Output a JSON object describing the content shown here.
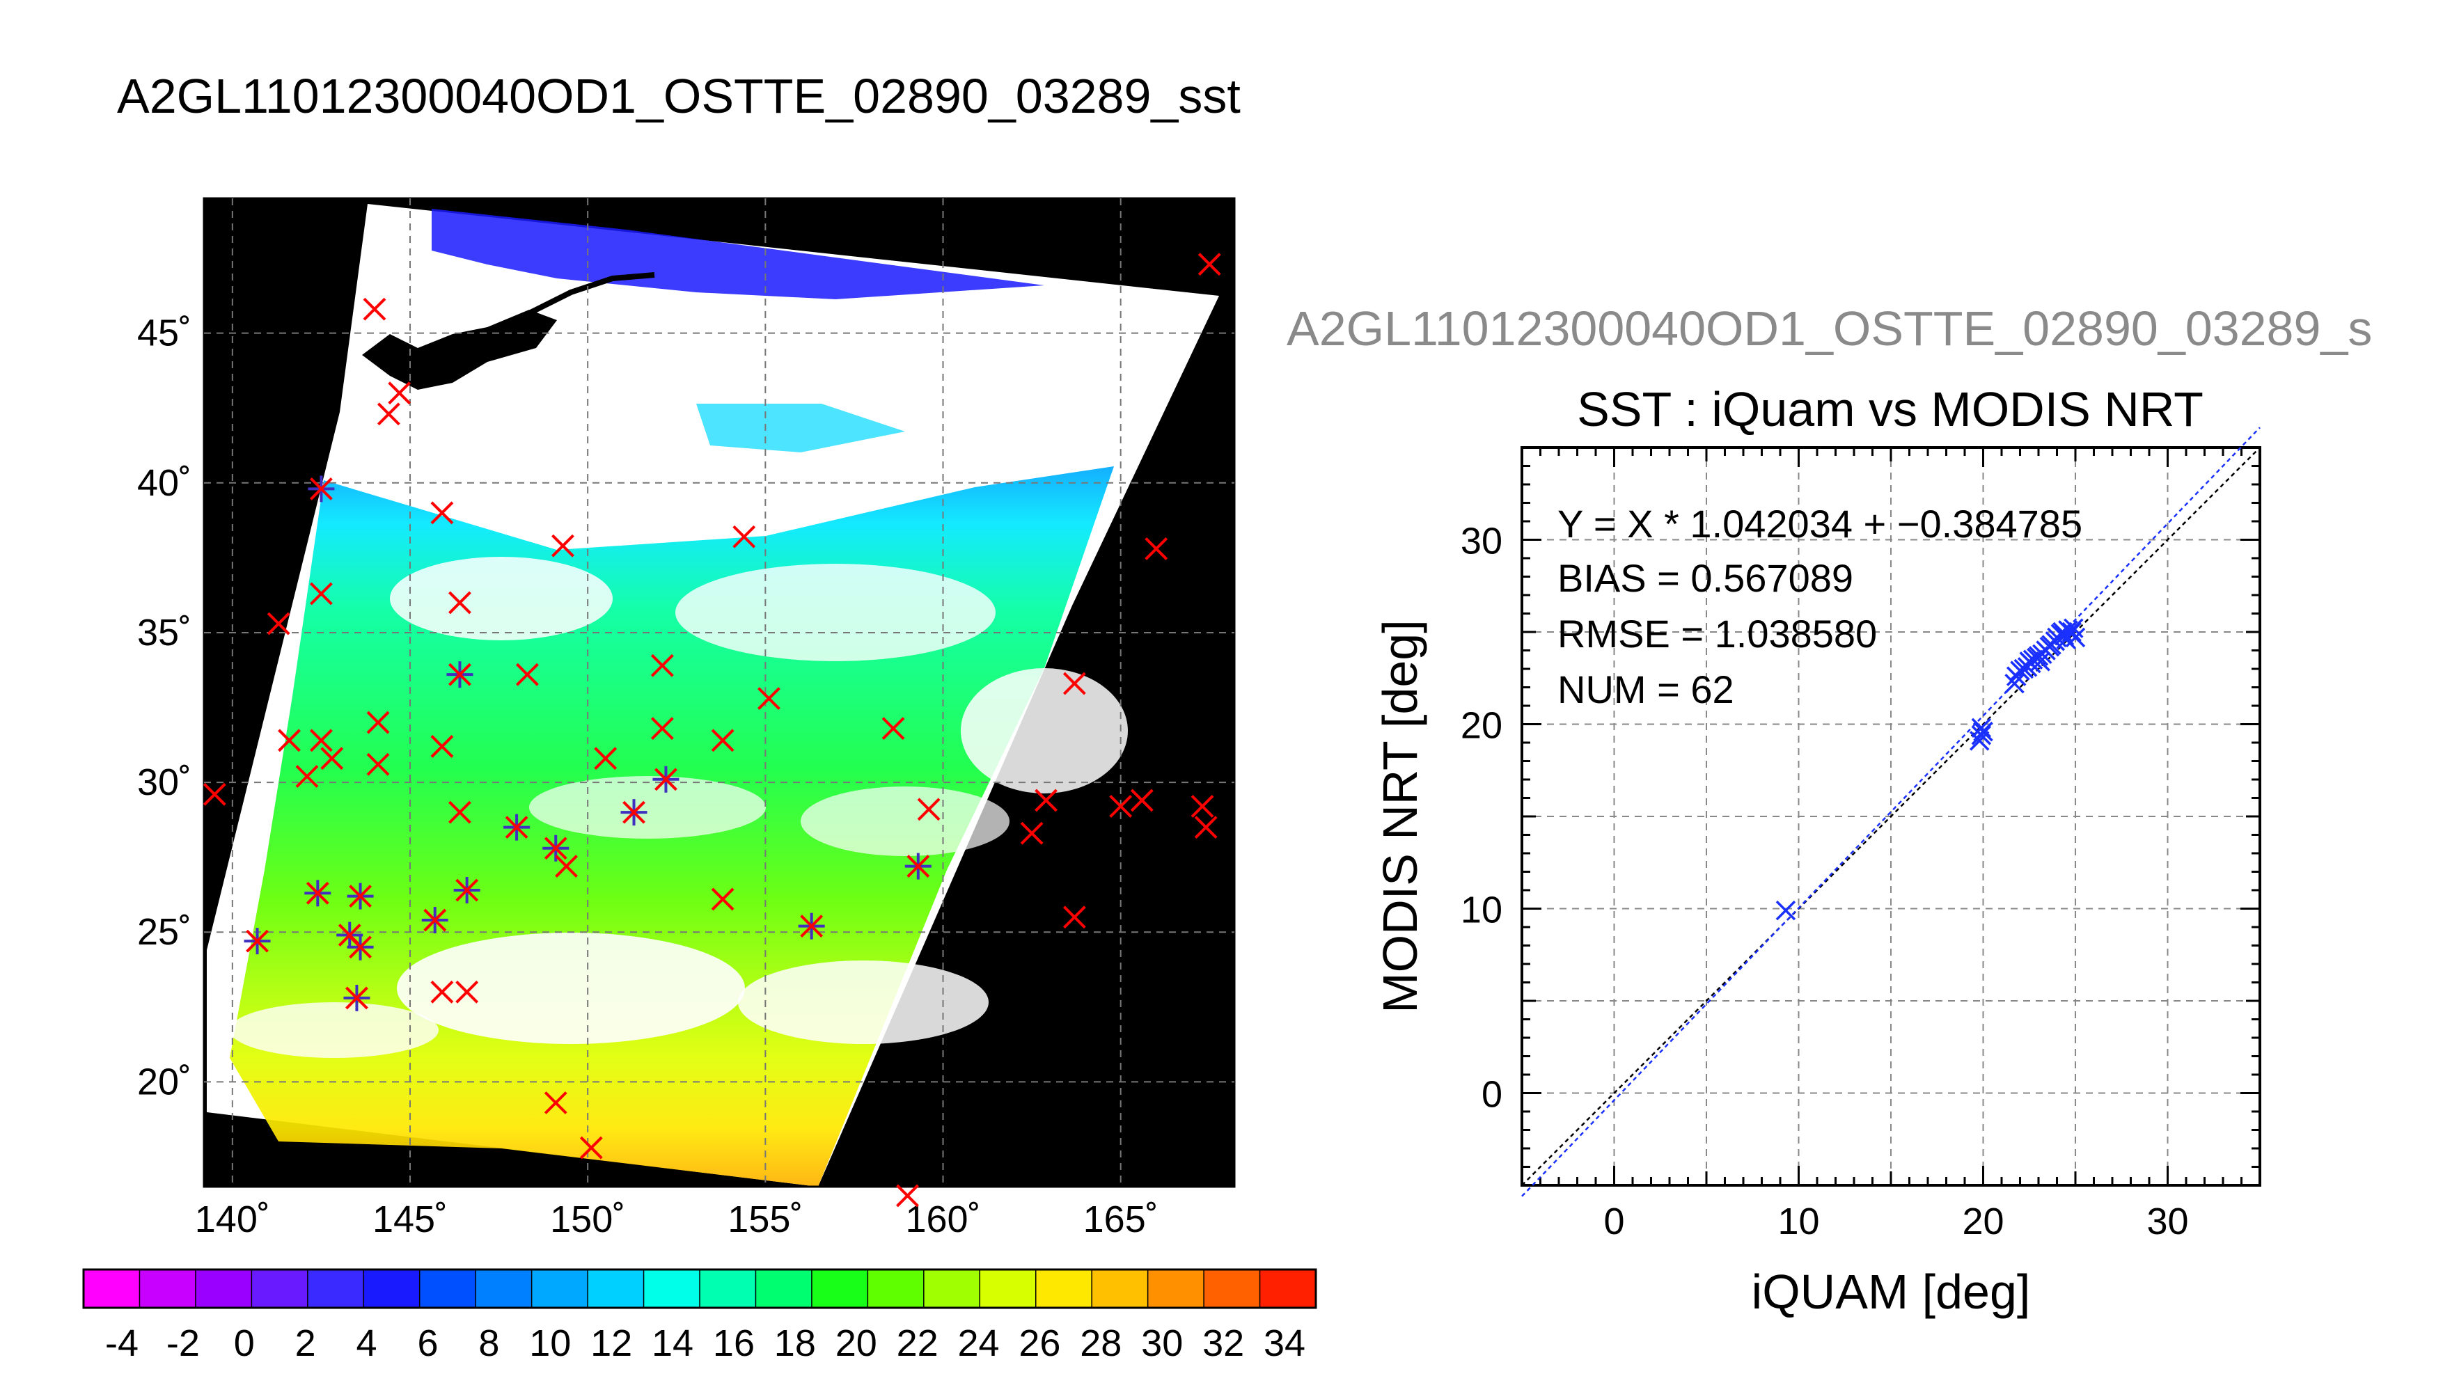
{
  "title": "A2GL11012300040OD1_OSTTE_02890_03289_sst",
  "right_title": "A2GL11012300040OD1_OSTTE_02890_03289_s",
  "map": {
    "lon_labels": [
      "140˚",
      "145˚",
      "150˚",
      "155˚",
      "160˚",
      "165˚"
    ],
    "lat_labels": [
      "45˚",
      "40˚",
      "35˚",
      "30˚",
      "25˚",
      "20˚"
    ],
    "lon_range": [
      139.2,
      168.2
    ],
    "lat_range": [
      16.5,
      49.5
    ],
    "grid_lons": [
      140,
      145,
      150,
      155,
      160,
      165
    ],
    "grid_lats": [
      20,
      25,
      30,
      35,
      40,
      45
    ],
    "markers": [
      {
        "lon": 144.0,
        "lat": 45.8,
        "type": "x"
      },
      {
        "lon": 167.5,
        "lat": 47.3,
        "type": "x"
      },
      {
        "lon": 144.4,
        "lat": 42.3,
        "type": "x"
      },
      {
        "lon": 144.7,
        "lat": 43.0,
        "type": "x"
      },
      {
        "lon": 142.5,
        "lat": 39.8,
        "type": "star"
      },
      {
        "lon": 145.9,
        "lat": 39.0,
        "type": "x"
      },
      {
        "lon": 149.3,
        "lat": 37.9,
        "type": "x"
      },
      {
        "lon": 154.4,
        "lat": 38.2,
        "type": "x"
      },
      {
        "lon": 166.0,
        "lat": 37.8,
        "type": "x"
      },
      {
        "lon": 142.5,
        "lat": 36.3,
        "type": "x"
      },
      {
        "lon": 146.4,
        "lat": 36.0,
        "type": "x"
      },
      {
        "lon": 141.3,
        "lat": 35.3,
        "type": "x"
      },
      {
        "lon": 146.4,
        "lat": 33.6,
        "type": "star"
      },
      {
        "lon": 148.3,
        "lat": 33.6,
        "type": "x"
      },
      {
        "lon": 152.1,
        "lat": 33.9,
        "type": "x"
      },
      {
        "lon": 163.7,
        "lat": 33.3,
        "type": "x"
      },
      {
        "lon": 155.1,
        "lat": 32.8,
        "type": "x"
      },
      {
        "lon": 144.1,
        "lat": 32.0,
        "type": "x"
      },
      {
        "lon": 152.1,
        "lat": 31.8,
        "type": "x"
      },
      {
        "lon": 158.6,
        "lat": 31.8,
        "type": "x"
      },
      {
        "lon": 141.6,
        "lat": 31.4,
        "type": "x"
      },
      {
        "lon": 142.5,
        "lat": 31.4,
        "type": "x"
      },
      {
        "lon": 145.9,
        "lat": 31.2,
        "type": "x"
      },
      {
        "lon": 153.8,
        "lat": 31.4,
        "type": "x"
      },
      {
        "lon": 142.8,
        "lat": 30.8,
        "type": "x"
      },
      {
        "lon": 150.5,
        "lat": 30.8,
        "type": "x"
      },
      {
        "lon": 142.1,
        "lat": 30.2,
        "type": "x"
      },
      {
        "lon": 144.1,
        "lat": 30.6,
        "type": "x"
      },
      {
        "lon": 152.2,
        "lat": 30.1,
        "type": "star"
      },
      {
        "lon": 139.5,
        "lat": 29.6,
        "type": "x"
      },
      {
        "lon": 146.4,
        "lat": 29.0,
        "type": "x"
      },
      {
        "lon": 151.3,
        "lat": 29.0,
        "type": "star"
      },
      {
        "lon": 159.6,
        "lat": 29.1,
        "type": "x"
      },
      {
        "lon": 162.9,
        "lat": 29.4,
        "type": "x"
      },
      {
        "lon": 165.0,
        "lat": 29.2,
        "type": "x"
      },
      {
        "lon": 165.6,
        "lat": 29.4,
        "type": "x"
      },
      {
        "lon": 167.3,
        "lat": 29.2,
        "type": "x"
      },
      {
        "lon": 167.4,
        "lat": 28.5,
        "type": "x"
      },
      {
        "lon": 148.0,
        "lat": 28.5,
        "type": "star"
      },
      {
        "lon": 162.5,
        "lat": 28.3,
        "type": "x"
      },
      {
        "lon": 149.1,
        "lat": 27.8,
        "type": "star"
      },
      {
        "lon": 149.4,
        "lat": 27.2,
        "type": "x"
      },
      {
        "lon": 159.3,
        "lat": 27.2,
        "type": "star"
      },
      {
        "lon": 142.4,
        "lat": 26.3,
        "type": "star"
      },
      {
        "lon": 143.6,
        "lat": 26.2,
        "type": "star"
      },
      {
        "lon": 146.6,
        "lat": 26.4,
        "type": "star"
      },
      {
        "lon": 153.8,
        "lat": 26.1,
        "type": "x"
      },
      {
        "lon": 145.7,
        "lat": 25.4,
        "type": "star"
      },
      {
        "lon": 156.3,
        "lat": 25.2,
        "type": "star"
      },
      {
        "lon": 163.7,
        "lat": 25.5,
        "type": "x"
      },
      {
        "lon": 143.3,
        "lat": 24.9,
        "type": "star"
      },
      {
        "lon": 140.7,
        "lat": 24.7,
        "type": "star"
      },
      {
        "lon": 143.6,
        "lat": 24.5,
        "type": "star"
      },
      {
        "lon": 143.5,
        "lat": 22.8,
        "type": "star"
      },
      {
        "lon": 145.9,
        "lat": 23.0,
        "type": "x"
      },
      {
        "lon": 146.6,
        "lat": 23.0,
        "type": "x"
      },
      {
        "lon": 149.1,
        "lat": 19.3,
        "type": "x"
      },
      {
        "lon": 150.1,
        "lat": 17.8,
        "type": "x"
      },
      {
        "lon": 159.0,
        "lat": 16.2,
        "type": "x"
      }
    ]
  },
  "colorbar": {
    "labels": [
      "-4",
      "-2",
      "0",
      "2",
      "4",
      "6",
      "8",
      "10",
      "12",
      "14",
      "16",
      "18",
      "20",
      "22",
      "24",
      "26",
      "28",
      "30",
      "32",
      "34"
    ],
    "colors": [
      "#ff00ff",
      "#c800ff",
      "#9a00ff",
      "#6a1aff",
      "#3a2aff",
      "#1a1aff",
      "#0050ff",
      "#0080ff",
      "#00a8ff",
      "#00d0ff",
      "#00ffe8",
      "#00ffb0",
      "#00ff70",
      "#18ff18",
      "#60ff00",
      "#a0ff00",
      "#d8ff00",
      "#ffe800",
      "#ffc000",
      "#ff9000",
      "#ff6000",
      "#ff2000"
    ]
  },
  "chart_data": {
    "type": "scatter",
    "title": "SST : iQuam vs MODIS NRT",
    "xlabel": "iQUAM [deg]",
    "ylabel": "MODIS NRT [deg]",
    "xlim": [
      -5,
      35
    ],
    "ylim": [
      -5,
      35
    ],
    "xticks": [
      "0",
      "10",
      "20",
      "30"
    ],
    "yticks": [
      "0",
      "10",
      "20",
      "30"
    ],
    "grid": true,
    "stats": {
      "fit": "Y = X * 1.042034 + −0.384785",
      "bias": "BIAS = 0.567089",
      "rmse": "RMSE = 1.038580",
      "num": "NUM = 62"
    },
    "fit_line": {
      "slope": 1.042034,
      "intercept": -0.384785
    },
    "points": [
      [
        9.3,
        9.9
      ],
      [
        19.8,
        19.1
      ],
      [
        19.9,
        19.4
      ],
      [
        20.0,
        19.6
      ],
      [
        19.9,
        19.8
      ],
      [
        21.7,
        22.2
      ],
      [
        21.8,
        22.6
      ],
      [
        22.0,
        22.9
      ],
      [
        22.2,
        23.0
      ],
      [
        22.4,
        23.1
      ],
      [
        22.6,
        23.3
      ],
      [
        22.7,
        23.5
      ],
      [
        22.9,
        23.6
      ],
      [
        23.1,
        23.4
      ],
      [
        23.2,
        23.8
      ],
      [
        23.4,
        24.0
      ],
      [
        23.6,
        24.2
      ],
      [
        23.7,
        24.3
      ],
      [
        23.9,
        24.5
      ],
      [
        24.0,
        24.7
      ],
      [
        24.2,
        24.9
      ],
      [
        24.3,
        25.0
      ],
      [
        24.4,
        24.8
      ],
      [
        24.6,
        25.1
      ],
      [
        24.8,
        25.0
      ],
      [
        24.9,
        25.2
      ],
      [
        25.0,
        24.7
      ],
      [
        24.5,
        24.6
      ],
      [
        23.0,
        23.7
      ],
      [
        22.5,
        23.4
      ]
    ]
  }
}
